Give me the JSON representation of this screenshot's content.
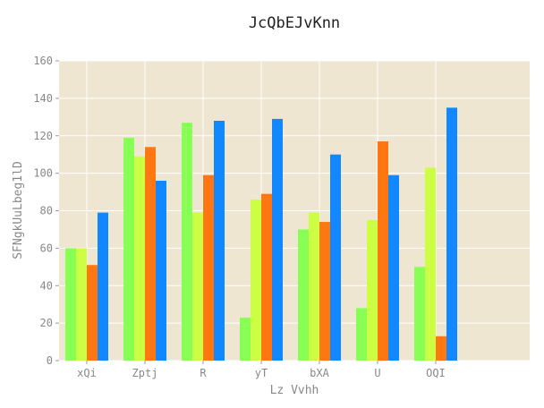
{
  "chart_data": {
    "type": "bar",
    "title": "JcQbEJvKnn",
    "xlabel": "Lz Vvhh",
    "ylabel": "SFNgkUuLbeg1lD",
    "categories": [
      "xQi",
      "Zptj",
      "R",
      "yT",
      "bXA",
      "U",
      "OQI"
    ],
    "ylim": [
      0,
      160
    ],
    "yticks": [
      "0",
      "20",
      "40",
      "60",
      "80",
      "100",
      "120",
      "140",
      "160"
    ],
    "grid": true,
    "legend": "none",
    "series": [
      {
        "color": "#88ff55",
        "values": [
          60,
          119,
          127,
          23,
          70,
          28,
          50
        ]
      },
      {
        "color": "#ccff44",
        "values": [
          60,
          109,
          79,
          86,
          79,
          75,
          103
        ]
      },
      {
        "color": "#ff7711",
        "values": [
          51,
          114,
          99,
          89,
          74,
          117,
          13
        ]
      },
      {
        "color": "#1188ff",
        "values": [
          79,
          96,
          128,
          129,
          110,
          99,
          135
        ]
      }
    ],
    "plot_background": "#efe6d2"
  }
}
